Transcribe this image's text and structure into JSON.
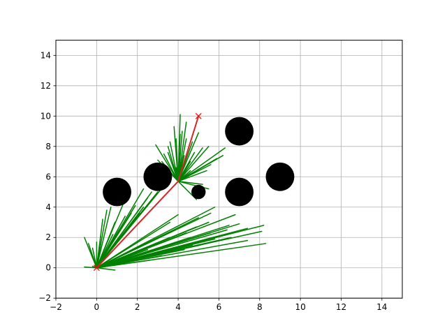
{
  "chart_data": {
    "type": "scatter",
    "title": "",
    "xlabel": "",
    "ylabel": "",
    "xlim": [
      -2,
      15
    ],
    "ylim": [
      -2,
      15
    ],
    "xticks": [
      -2,
      0,
      2,
      4,
      6,
      8,
      10,
      12,
      14
    ],
    "yticks": [
      -2,
      0,
      2,
      4,
      6,
      8,
      10,
      12,
      14
    ],
    "grid": true,
    "colors": {
      "tree": "#008000",
      "path": "#d62728",
      "marker": "#ff0000",
      "obstacle": "#000000",
      "grid": "#b0b0b0"
    },
    "start": [
      0,
      0
    ],
    "goal": [
      5,
      10
    ],
    "obstacles": [
      {
        "x": 1,
        "y": 5,
        "r": 0.7
      },
      {
        "x": 3,
        "y": 6,
        "r": 0.7
      },
      {
        "x": 5,
        "y": 5,
        "r": 0.35
      },
      {
        "x": 7,
        "y": 9,
        "r": 0.7
      },
      {
        "x": 7,
        "y": 5,
        "r": 0.7
      },
      {
        "x": 9,
        "y": 6,
        "r": 0.7
      }
    ],
    "path": [
      [
        0,
        0
      ],
      [
        4.0,
        5.7
      ],
      [
        5.0,
        10.0
      ]
    ],
    "tree_from_start": [
      [
        -0.6,
        2.0
      ],
      [
        -0.4,
        1.6
      ],
      [
        -0.2,
        1.3
      ],
      [
        0.0,
        1.7
      ],
      [
        0.2,
        2.1
      ],
      [
        0.3,
        3.2
      ],
      [
        0.5,
        3.8
      ],
      [
        0.7,
        4.0
      ],
      [
        0.9,
        3.0
      ],
      [
        1.1,
        2.5
      ],
      [
        1.4,
        3.4
      ],
      [
        1.7,
        3.6
      ],
      [
        1.9,
        4.1
      ],
      [
        2.1,
        3.6
      ],
      [
        2.3,
        4.0
      ],
      [
        2.5,
        4.6
      ],
      [
        2.7,
        5.0
      ],
      [
        3.0,
        5.0
      ],
      [
        3.3,
        5.4
      ],
      [
        2.3,
        5.2
      ],
      [
        1.3,
        4.2
      ],
      [
        0.8,
        2.2
      ],
      [
        -0.6,
        0.05
      ],
      [
        -0.2,
        0.1
      ],
      [
        0.9,
        -0.15
      ],
      [
        1.2,
        0.5
      ],
      [
        2.6,
        0.5
      ],
      [
        3.2,
        0.8
      ],
      [
        3.5,
        1.0
      ],
      [
        4.3,
        1.2
      ],
      [
        4.7,
        1.5
      ],
      [
        5.1,
        1.5
      ],
      [
        5.8,
        1.9
      ],
      [
        6.6,
        2.0
      ],
      [
        7.4,
        1.8
      ],
      [
        8.3,
        1.6
      ],
      [
        8.1,
        2.4
      ],
      [
        8.2,
        2.8
      ],
      [
        7.4,
        2.6
      ],
      [
        7.0,
        2.9
      ],
      [
        6.4,
        2.5
      ],
      [
        5.6,
        2.3
      ],
      [
        5.5,
        3.0
      ],
      [
        6.5,
        2.8
      ],
      [
        4.6,
        2.0
      ],
      [
        5.0,
        3.3
      ],
      [
        5.8,
        4.0
      ],
      [
        5.6,
        3.6
      ],
      [
        4.9,
        2.7
      ],
      [
        6.8,
        3.5
      ],
      [
        4.4,
        2.3
      ],
      [
        3.6,
        2.0
      ],
      [
        3.0,
        1.6
      ],
      [
        2.5,
        1.2
      ],
      [
        4.0,
        3.5
      ],
      [
        3.6,
        3.0
      ]
    ],
    "tree_from_waypoint": [
      [
        4.8,
        7.6
      ],
      [
        5.2,
        7.9
      ],
      [
        5.5,
        8.0
      ],
      [
        5.9,
        7.2
      ],
      [
        6.3,
        7.9
      ],
      [
        6.2,
        7.4
      ],
      [
        5.6,
        6.8
      ],
      [
        5.4,
        6.4
      ],
      [
        5.2,
        5.5
      ],
      [
        5.5,
        5.2
      ],
      [
        4.9,
        4.5
      ],
      [
        5.0,
        8.9
      ],
      [
        4.7,
        8.3
      ],
      [
        4.4,
        9.6
      ],
      [
        4.1,
        10.1
      ],
      [
        4.2,
        9.0
      ],
      [
        3.9,
        8.5
      ],
      [
        3.6,
        8.3
      ],
      [
        3.8,
        9.3
      ],
      [
        3.5,
        7.6
      ],
      [
        3.3,
        7.5
      ],
      [
        3.2,
        7.0
      ],
      [
        3.0,
        7.1
      ],
      [
        2.9,
        8.1
      ],
      [
        3.5,
        8.0
      ],
      [
        4.2,
        6.8
      ],
      [
        4.6,
        6.4
      ],
      [
        4.0,
        6.1
      ],
      [
        3.9,
        6.6
      ],
      [
        4.3,
        7.4
      ],
      [
        4.6,
        7.0
      ],
      [
        4.4,
        8.5
      ],
      [
        4.1,
        8.8
      ]
    ]
  }
}
